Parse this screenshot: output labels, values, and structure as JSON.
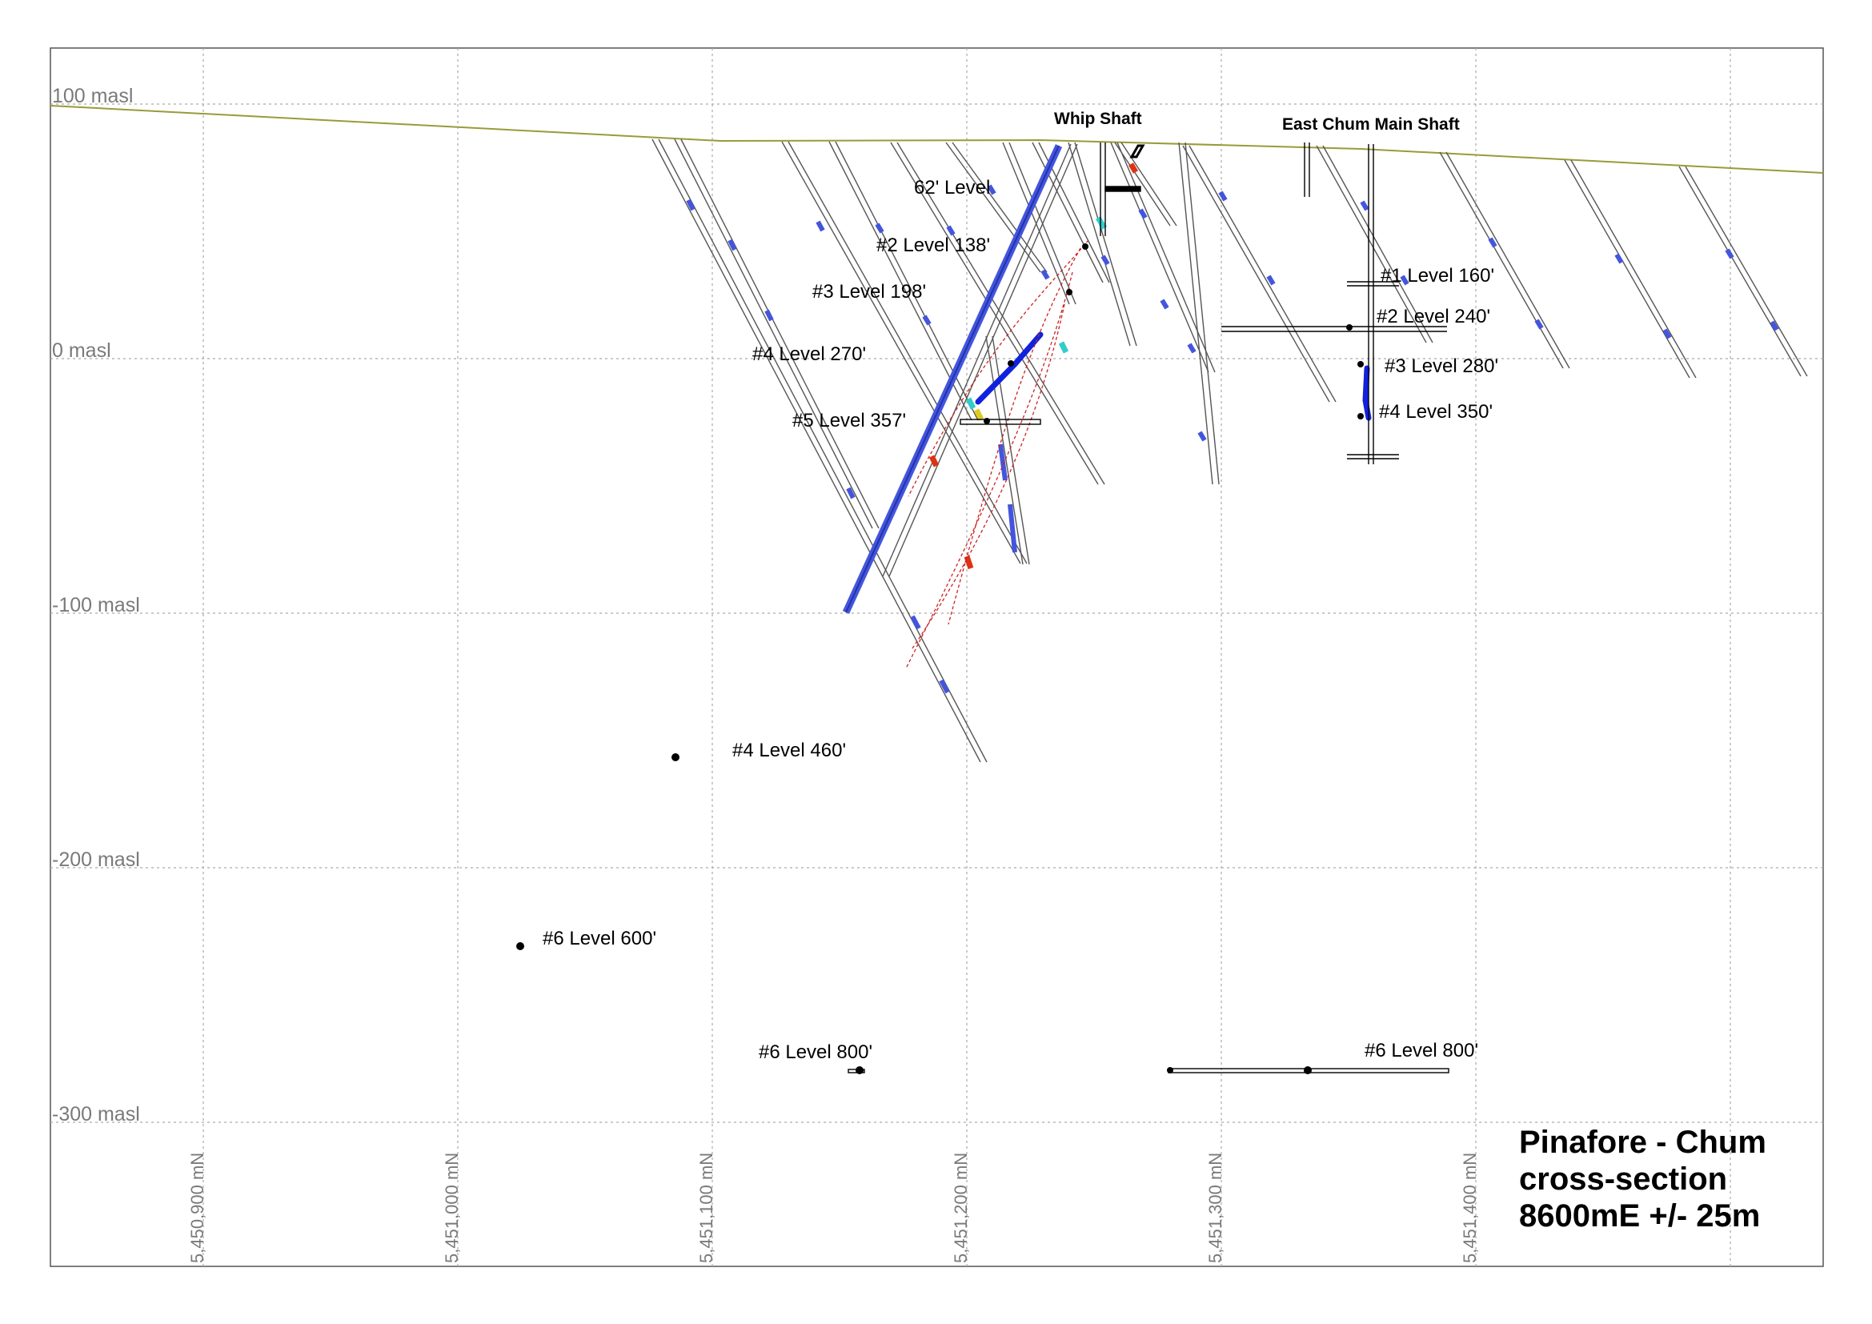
{
  "section": {
    "title_lines": [
      "Pinafore - Chum",
      "cross-section",
      "8600mE +/- 25m"
    ],
    "elevations": [
      "100 masl",
      "0 masl",
      "-100 masl",
      "-200 masl",
      "-300 masl"
    ],
    "northings": [
      "5,450,900 mN",
      "5,451,000 mN",
      "5,451,100 mN",
      "5,451,200 mN",
      "5,451,300 mN",
      "5,451,400 mN"
    ],
    "shafts": [
      "Whip Shaft",
      "East Chum Main Shaft"
    ],
    "levels": [
      "62' Level",
      "#2 Level 138'",
      "#3 Level 198'",
      "#4 Level 270'",
      "#5 Level 357'",
      "#4 Level 460'",
      "#6 Level 600'",
      "#6 Level 800'",
      "#1 Level 160'",
      "#2 Level 240'",
      "#3 Level 280'",
      "#4 Level 350'",
      "#6 Level 800'"
    ]
  },
  "colors": {
    "topography": "#9a9a3a",
    "grade_high": "#4455dd",
    "grade_mid": "#33cccc",
    "grade_peak": "#dd3311",
    "workings": "#000000",
    "grid": "#aaaaaa"
  }
}
